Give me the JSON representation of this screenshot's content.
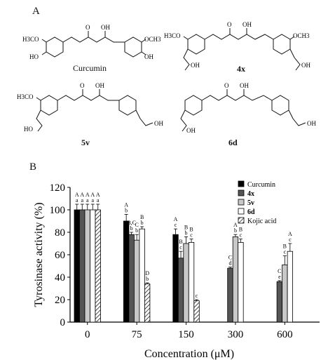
{
  "panels": {
    "a": "A",
    "b": "B"
  },
  "molecules": {
    "m1": {
      "name": "Curcumin",
      "labels": {
        "ome1": "H3CO",
        "ome2": "OCH3",
        "oh1": "HO",
        "oh2": "OH",
        "keto": "O",
        "enol": "OH"
      }
    },
    "m2": {
      "name": "4x",
      "labels": {
        "ome1": "H3CO",
        "ome2": "OCH3",
        "keto": "O",
        "enol": "OH",
        "oh1": "OH",
        "oh2": "OH"
      }
    },
    "m3": {
      "name": "5v",
      "labels": {
        "ome1": "H3CO",
        "keto": "O",
        "enol": "OH",
        "oh1": "HO",
        "oh2": "OH"
      }
    },
    "m4": {
      "name": "6d",
      "labels": {
        "keto": "O",
        "enol": "OH",
        "oh1": "OH",
        "oh2": "OH"
      }
    }
  },
  "chart_data": {
    "type": "bar",
    "xlabel": "Concentration (μM)",
    "ylabel": "Tyrosinase activity (%)",
    "ylim": [
      0,
      120
    ],
    "yticks": [
      "0",
      "20",
      "40",
      "60",
      "80",
      "100",
      "120"
    ],
    "categories": [
      "0",
      "75",
      "150",
      "300",
      "600"
    ],
    "legend_position": "top-right",
    "series": [
      {
        "name": "Curcumin",
        "color": "#000000",
        "pattern": "solid",
        "values": [
          100,
          90,
          78,
          null,
          null
        ],
        "errors": [
          5,
          6,
          5,
          0,
          0
        ],
        "letters": [
          [
            "A",
            "a"
          ],
          [
            "A",
            "b"
          ],
          [
            "A",
            "c"
          ],
          [],
          []
        ]
      },
      {
        "name": "4x",
        "color": "#555555",
        "pattern": "solid",
        "values": [
          100,
          78,
          57,
          48,
          36
        ],
        "errors": [
          5,
          2,
          6,
          1,
          1
        ],
        "letters": [
          [
            "A",
            "a"
          ],
          [
            "B,C",
            "b"
          ],
          [
            "B",
            "c"
          ],
          [
            "C",
            "d"
          ],
          [
            "C",
            "e"
          ]
        ]
      },
      {
        "name": "5v",
        "color": "#c8c8c8",
        "pattern": "solid",
        "values": [
          100,
          73,
          70,
          76,
          51
        ],
        "errors": [
          5,
          5,
          6,
          2,
          8
        ],
        "letters": [
          [
            "A",
            "a"
          ],
          [
            "C",
            "b"
          ],
          [
            "B",
            "b"
          ],
          [
            "A",
            "b"
          ],
          [
            "B",
            "c"
          ]
        ]
      },
      {
        "name": "6d",
        "color": "#ffffff",
        "pattern": "solid",
        "values": [
          100,
          83,
          71,
          71,
          63
        ],
        "errors": [
          5,
          2,
          3,
          3,
          7
        ],
        "letters": [
          [
            "A",
            "a"
          ],
          [
            "B",
            "b"
          ],
          [
            "B",
            "c"
          ],
          [
            "B",
            "c"
          ],
          [
            "A",
            "c"
          ]
        ]
      },
      {
        "name": "Kojic acid",
        "color": "#ffffff",
        "pattern": "hatch",
        "values": [
          100,
          34,
          19,
          null,
          null
        ],
        "errors": [
          5,
          1,
          1,
          0,
          0
        ],
        "letters": [
          [
            "A",
            "a"
          ],
          [
            "D",
            "b"
          ],
          [
            "c"
          ],
          [],
          []
        ]
      }
    ]
  }
}
